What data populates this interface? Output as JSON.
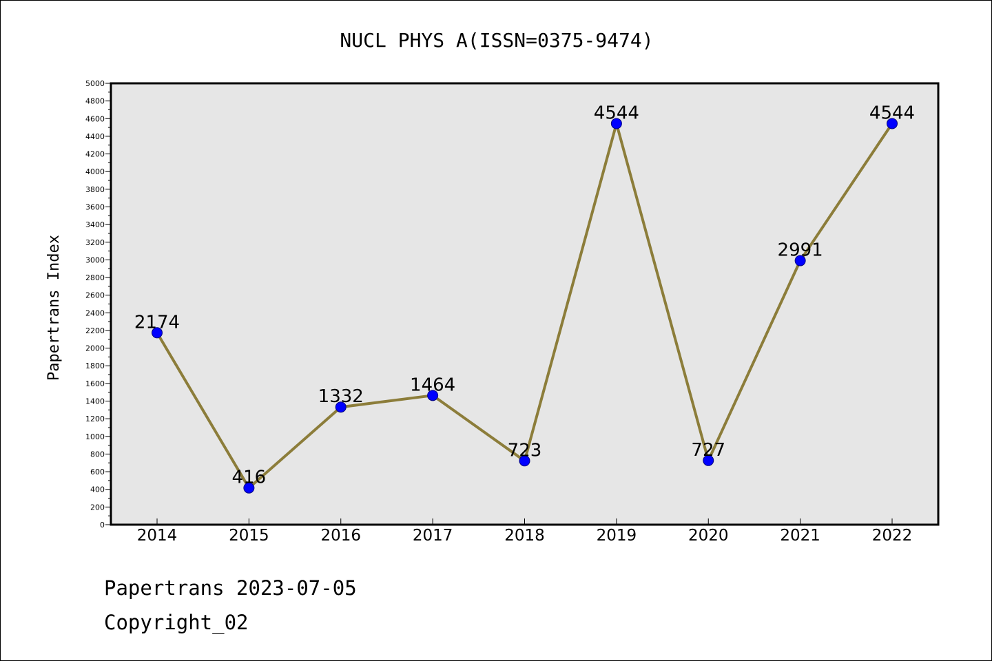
{
  "chart_data": {
    "type": "line",
    "title": "NUCL PHYS A(ISSN=0375-9474)",
    "xlabel": "",
    "ylabel": "Papertrans Index",
    "categories": [
      "2014",
      "2015",
      "2016",
      "2017",
      "2018",
      "2019",
      "2020",
      "2021",
      "2022"
    ],
    "series": [
      {
        "values": [
          2174,
          416,
          1332,
          1464,
          723,
          4544,
          727,
          2991,
          4544
        ]
      }
    ],
    "ylim": [
      0,
      5000
    ],
    "ytick_step": 200,
    "grid": false,
    "legend": "none",
    "colors": {
      "line": "#8c7d3a",
      "marker_fill": "#0000ff",
      "marker_edge": "#000080",
      "plot_background": "#e6e6e6"
    }
  },
  "footer": {
    "date_line": "Papertrans 2023-07-05",
    "copyright_line": "Copyright_02"
  }
}
